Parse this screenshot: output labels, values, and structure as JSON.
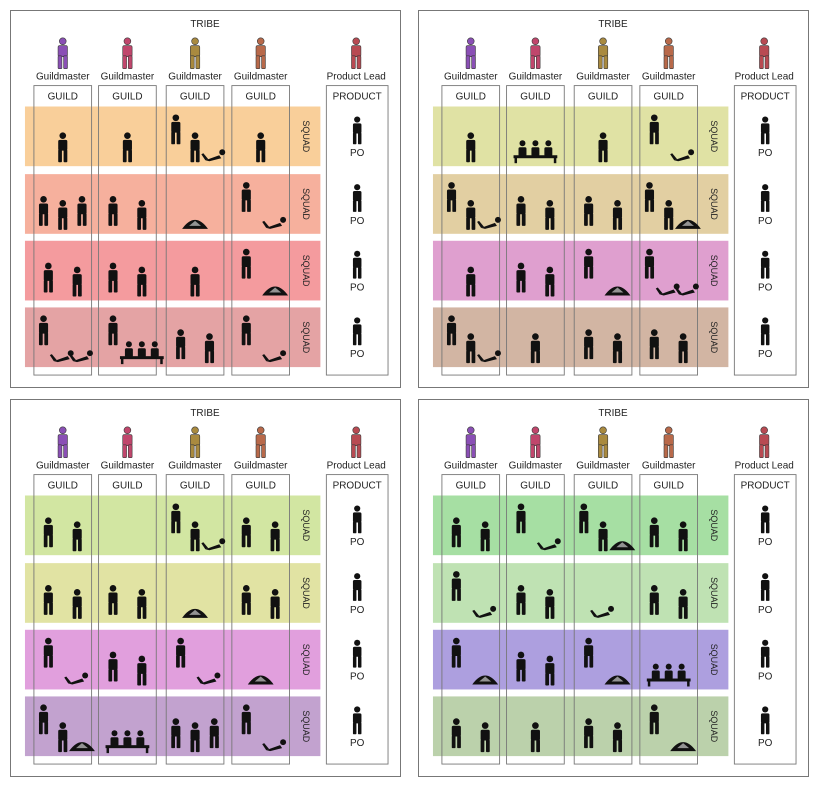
{
  "panels": [
    {
      "title": "TRIBE",
      "guildmasters": [
        {
          "label": "Guildmaster",
          "color": "#8a4fb5"
        },
        {
          "label": "Guildmaster",
          "color": "#c0466c"
        },
        {
          "label": "Guildmaster",
          "color": "#a98a3f"
        },
        {
          "label": "Guildmaster",
          "color": "#b8694a"
        }
      ],
      "product_lead": {
        "label": "Product Lead",
        "color": "#b84a52"
      },
      "guild_label": "GUILD",
      "product_label": "PRODUCT",
      "squads": [
        {
          "label": "SQUAD",
          "color": "#f9cf9a",
          "members": [
            [
              1,
              0
            ],
            [
              1,
              0
            ],
            [
              2,
              1
            ],
            [
              1,
              0
            ]
          ]
        },
        {
          "label": "SQUAD",
          "color": "#f6b09d",
          "members": [
            [
              3,
              0
            ],
            [
              2,
              0
            ],
            [
              0,
              1
            ],
            [
              1,
              1
            ]
          ]
        },
        {
          "label": "SQUAD",
          "color": "#f49b9e",
          "members": [
            [
              2,
              0
            ],
            [
              2,
              0
            ],
            [
              1,
              0
            ],
            [
              1,
              1
            ]
          ]
        },
        {
          "label": "SQUAD",
          "color": "#e4a3a4",
          "members": [
            [
              1,
              2
            ],
            [
              1,
              3
            ],
            [
              2,
              0
            ],
            [
              1,
              1
            ]
          ]
        }
      ],
      "po_label": "PO"
    },
    {
      "title": "TRIBE",
      "guildmasters": [
        {
          "label": "Guildmaster",
          "color": "#8a4fb5"
        },
        {
          "label": "Guildmaster",
          "color": "#c0466c"
        },
        {
          "label": "Guildmaster",
          "color": "#a98a3f"
        },
        {
          "label": "Guildmaster",
          "color": "#b8694a"
        }
      ],
      "product_lead": {
        "label": "Product Lead",
        "color": "#b84a52"
      },
      "guild_label": "GUILD",
      "product_label": "PRODUCT",
      "squads": [
        {
          "label": "SQUAD",
          "color": "#e0e2a4",
          "members": [
            [
              1,
              0
            ],
            [
              0,
              3
            ],
            [
              1,
              0
            ],
            [
              1,
              1
            ]
          ]
        },
        {
          "label": "SQUAD",
          "color": "#e2cfa2",
          "members": [
            [
              2,
              1
            ],
            [
              2,
              0
            ],
            [
              2,
              0
            ],
            [
              2,
              1
            ]
          ]
        },
        {
          "label": "SQUAD",
          "color": "#df9fcf",
          "members": [
            [
              1,
              0
            ],
            [
              2,
              0
            ],
            [
              1,
              1
            ],
            [
              1,
              2
            ]
          ]
        },
        {
          "label": "SQUAD",
          "color": "#d2b5a3",
          "members": [
            [
              2,
              1
            ],
            [
              1,
              0
            ],
            [
              2,
              0
            ],
            [
              2,
              0
            ]
          ]
        }
      ],
      "po_label": "PO"
    },
    {
      "title": "TRIBE",
      "guildmasters": [
        {
          "label": "Guildmaster",
          "color": "#8a4fb5"
        },
        {
          "label": "Guildmaster",
          "color": "#c0466c"
        },
        {
          "label": "Guildmaster",
          "color": "#a98a3f"
        },
        {
          "label": "Guildmaster",
          "color": "#b8694a"
        }
      ],
      "product_lead": {
        "label": "Product Lead",
        "color": "#b84a52"
      },
      "guild_label": "GUILD",
      "product_label": "PRODUCT",
      "squads": [
        {
          "label": "SQUAD",
          "color": "#d2e6a2",
          "members": [
            [
              2,
              0
            ],
            [
              0,
              0
            ],
            [
              2,
              1
            ],
            [
              2,
              0
            ]
          ]
        },
        {
          "label": "SQUAD",
          "color": "#e1e3a3",
          "members": [
            [
              2,
              0
            ],
            [
              2,
              0
            ],
            [
              0,
              1
            ],
            [
              2,
              0
            ]
          ]
        },
        {
          "label": "SQUAD",
          "color": "#e19fdd",
          "members": [
            [
              1,
              1
            ],
            [
              2,
              0
            ],
            [
              1,
              1
            ],
            [
              0,
              1
            ]
          ]
        },
        {
          "label": "SQUAD",
          "color": "#c2a2cf",
          "members": [
            [
              2,
              1
            ],
            [
              0,
              3
            ],
            [
              3,
              0
            ],
            [
              1,
              1
            ]
          ]
        }
      ],
      "po_label": "PO"
    },
    {
      "title": "TRIBE",
      "guildmasters": [
        {
          "label": "Guildmaster",
          "color": "#8a4fb5"
        },
        {
          "label": "Guildmaster",
          "color": "#c0466c"
        },
        {
          "label": "Guildmaster",
          "color": "#a98a3f"
        },
        {
          "label": "Guildmaster",
          "color": "#b8694a"
        }
      ],
      "product_lead": {
        "label": "Product Lead",
        "color": "#b84a52"
      },
      "guild_label": "GUILD",
      "product_label": "PRODUCT",
      "squads": [
        {
          "label": "SQUAD",
          "color": "#a6dfa3",
          "members": [
            [
              2,
              0
            ],
            [
              1,
              1
            ],
            [
              2,
              1
            ],
            [
              2,
              0
            ]
          ]
        },
        {
          "label": "SQUAD",
          "color": "#bfe2b3",
          "members": [
            [
              1,
              1
            ],
            [
              2,
              0
            ],
            [
              0,
              1
            ],
            [
              2,
              0
            ]
          ]
        },
        {
          "label": "SQUAD",
          "color": "#ad9fdf",
          "members": [
            [
              1,
              1
            ],
            [
              2,
              0
            ],
            [
              1,
              1
            ],
            [
              0,
              3
            ]
          ]
        },
        {
          "label": "SQUAD",
          "color": "#bbd1ab",
          "members": [
            [
              2,
              0
            ],
            [
              1,
              0
            ],
            [
              2,
              0
            ],
            [
              1,
              1
            ]
          ]
        }
      ],
      "po_label": "PO"
    }
  ]
}
